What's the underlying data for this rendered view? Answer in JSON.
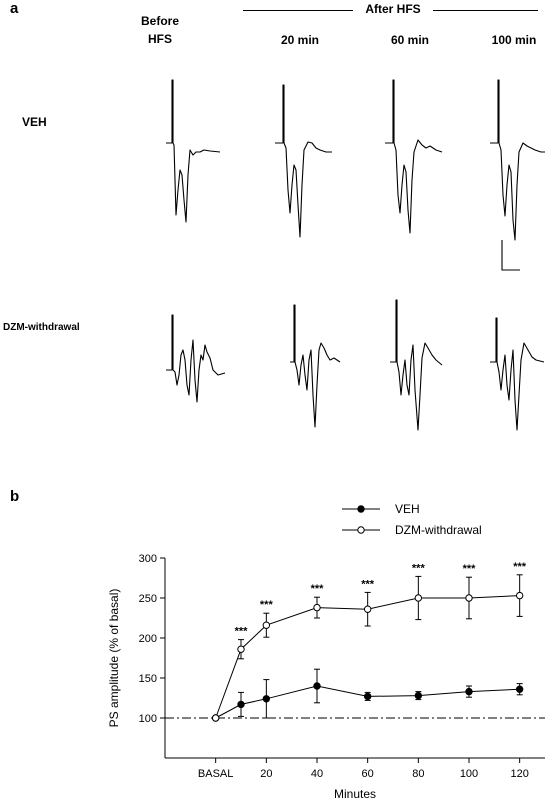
{
  "panel_a": {
    "letter": "a",
    "before_label_1": "Before",
    "before_label_2": "HFS",
    "after_label": "After HFS",
    "time_labels": [
      "20 min",
      "60 min",
      "100 min"
    ],
    "row_labels": [
      "VEH",
      "DZM-withdrawal"
    ]
  },
  "panel_b": {
    "letter": "b"
  },
  "chart_data": {
    "type": "line",
    "title": "",
    "xlabel": "Minutes",
    "ylabel": "PS amplitude (% of basal)",
    "x_tick_labels": [
      "BASAL",
      "20",
      "40",
      "60",
      "80",
      "100",
      "120"
    ],
    "x_ticks": [
      0,
      20,
      40,
      60,
      80,
      100,
      120
    ],
    "y_ticks": [
      100,
      150,
      200,
      250,
      300
    ],
    "xlim": [
      -20,
      130
    ],
    "ylim": [
      50,
      300
    ],
    "reference_line": 100,
    "legend_position": "top-right",
    "x": [
      0,
      10,
      20,
      40,
      60,
      80,
      100,
      120
    ],
    "series": [
      {
        "name": "VEH",
        "marker": "filled-circle",
        "values": [
          100,
          117,
          124,
          140,
          127,
          128,
          133,
          136
        ],
        "errors": [
          0,
          15,
          24,
          21,
          5,
          5,
          7,
          7
        ]
      },
      {
        "name": "DZM-withdrawal",
        "marker": "open-circle",
        "values": [
          100,
          186,
          216,
          238,
          236,
          250,
          250,
          253
        ],
        "errors": [
          0,
          12,
          15,
          13,
          21,
          27,
          26,
          26
        ]
      }
    ],
    "annotations": [
      {
        "x": 10,
        "text": "***"
      },
      {
        "x": 20,
        "text": "***"
      },
      {
        "x": 40,
        "text": "***"
      },
      {
        "x": 60,
        "text": "***"
      },
      {
        "x": 80,
        "text": "***"
      },
      {
        "x": 100,
        "text": "***"
      },
      {
        "x": 120,
        "text": "***"
      }
    ]
  }
}
